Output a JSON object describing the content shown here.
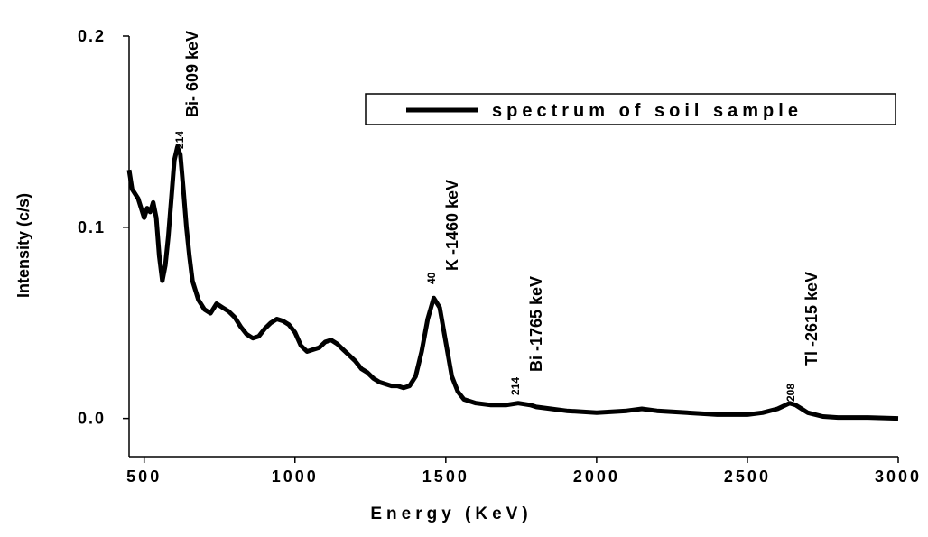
{
  "chart_data": {
    "type": "line",
    "xlabel": "Energy (KeV)",
    "ylabel": "Intensity (c/s)",
    "x": [
      450,
      460,
      480,
      500,
      510,
      520,
      530,
      540,
      550,
      560,
      570,
      580,
      590,
      600,
      610,
      620,
      630,
      640,
      650,
      660,
      680,
      700,
      720,
      740,
      760,
      780,
      800,
      820,
      840,
      860,
      880,
      900,
      920,
      940,
      960,
      980,
      1000,
      1020,
      1040,
      1060,
      1080,
      1100,
      1120,
      1140,
      1160,
      1180,
      1200,
      1220,
      1240,
      1260,
      1280,
      1300,
      1320,
      1340,
      1360,
      1380,
      1400,
      1420,
      1440,
      1460,
      1480,
      1500,
      1520,
      1540,
      1560,
      1600,
      1650,
      1700,
      1740,
      1780,
      1800,
      1900,
      2000,
      2100,
      2150,
      2200,
      2300,
      2400,
      2500,
      2550,
      2600,
      2640,
      2660,
      2700,
      2750,
      2800,
      2900,
      3000
    ],
    "series": [
      {
        "name": "spectrum of soil sample",
        "color": "#000000",
        "values": [
          0.13,
          0.12,
          0.115,
          0.105,
          0.11,
          0.108,
          0.113,
          0.105,
          0.085,
          0.072,
          0.08,
          0.095,
          0.115,
          0.135,
          0.142,
          0.138,
          0.12,
          0.1,
          0.085,
          0.072,
          0.062,
          0.057,
          0.055,
          0.06,
          0.058,
          0.056,
          0.053,
          0.048,
          0.044,
          0.042,
          0.043,
          0.047,
          0.05,
          0.052,
          0.051,
          0.049,
          0.045,
          0.038,
          0.035,
          0.036,
          0.037,
          0.04,
          0.041,
          0.039,
          0.036,
          0.033,
          0.03,
          0.026,
          0.024,
          0.021,
          0.019,
          0.018,
          0.017,
          0.017,
          0.016,
          0.017,
          0.022,
          0.035,
          0.052,
          0.063,
          0.058,
          0.04,
          0.022,
          0.014,
          0.01,
          0.008,
          0.007,
          0.007,
          0.008,
          0.007,
          0.006,
          0.004,
          0.003,
          0.004,
          0.005,
          0.004,
          0.003,
          0.002,
          0.002,
          0.003,
          0.005,
          0.008,
          0.007,
          0.003,
          0.001,
          0.0005,
          0.0005,
          0
        ]
      }
    ],
    "xlim": [
      450,
      3000
    ],
    "xticks": [
      500,
      1000,
      1500,
      2000,
      2500,
      3000
    ],
    "ylim": [
      -0.02,
      0.2
    ],
    "yticks": [
      {
        "value": 0,
        "label": "0.0"
      },
      0.1,
      0.2
    ],
    "annotations": [
      {
        "superscript": "214",
        "text": "Bi- 609 keV"
      },
      {
        "superscript": "40",
        "text": "K -1460 keV"
      },
      {
        "superscript": "214",
        "text": "Bi -1765 keV"
      },
      {
        "superscript": "208",
        "text": "Tl -2615 keV"
      }
    ]
  }
}
